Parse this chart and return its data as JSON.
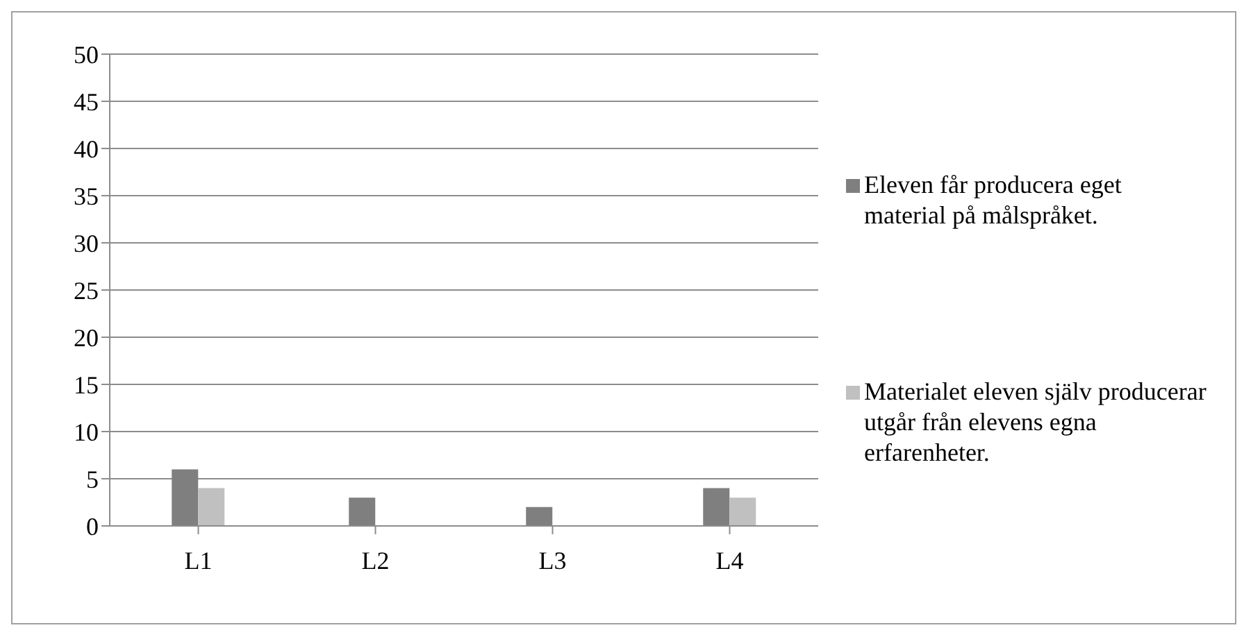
{
  "chart_data": {
    "type": "bar",
    "categories": [
      "L1",
      "L2",
      "L3",
      "L4"
    ],
    "series": [
      {
        "name": "Eleven får producera eget material på målspråket.",
        "color": "#7f7f7f",
        "values": [
          6,
          3,
          2,
          4
        ]
      },
      {
        "name": "Materialet eleven själv producerar utgår från elevens egna erfarenheter.",
        "color": "#c0c0c0",
        "values": [
          4,
          0,
          0,
          3
        ]
      }
    ],
    "ylim": [
      0,
      50
    ],
    "yticks": [
      0,
      5,
      10,
      15,
      20,
      25,
      30,
      35,
      40,
      45,
      50
    ],
    "grid": "y",
    "legend": "right"
  }
}
